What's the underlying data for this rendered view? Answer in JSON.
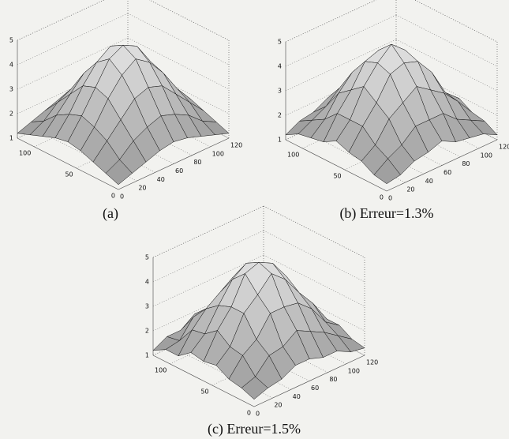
{
  "chart_data": [
    {
      "type": "surface",
      "caption": "(a)",
      "x": [
        0,
        15,
        30,
        45,
        60,
        75,
        90,
        105,
        120
      ],
      "y": [
        0,
        15,
        30,
        45,
        60,
        75,
        90,
        105,
        120
      ],
      "z": [
        [
          1.2,
          1.4,
          1.6,
          1.8,
          1.9,
          1.8,
          1.6,
          1.4,
          1.2
        ],
        [
          1.4,
          1.7,
          2.2,
          2.5,
          2.7,
          2.5,
          2.2,
          1.7,
          1.4
        ],
        [
          1.6,
          2.2,
          2.8,
          3.4,
          3.6,
          3.4,
          2.8,
          2.2,
          1.6
        ],
        [
          1.8,
          2.5,
          3.4,
          4.1,
          4.5,
          4.1,
          3.4,
          2.5,
          1.8
        ],
        [
          1.9,
          2.7,
          3.6,
          4.5,
          4.8,
          4.5,
          3.6,
          2.7,
          1.9
        ],
        [
          1.8,
          2.5,
          3.4,
          4.1,
          4.5,
          4.1,
          3.4,
          2.5,
          1.8
        ],
        [
          1.6,
          2.2,
          2.8,
          3.4,
          3.6,
          3.4,
          2.8,
          2.2,
          1.6
        ],
        [
          1.4,
          1.7,
          2.2,
          2.5,
          2.7,
          2.5,
          2.2,
          1.7,
          1.4
        ],
        [
          1.2,
          1.4,
          1.6,
          1.8,
          1.9,
          1.8,
          1.6,
          1.4,
          1.2
        ]
      ],
      "xlim": [
        0,
        120
      ],
      "ylim": [
        0,
        120
      ],
      "zlim": [
        1,
        5
      ],
      "xticks": [
        0,
        20,
        40,
        60,
        80,
        100,
        120
      ],
      "yticks": [
        0,
        50,
        100
      ],
      "zticks": [
        1,
        2,
        3,
        4,
        5
      ]
    },
    {
      "type": "surface",
      "caption": "(b) Erreur=1.3%",
      "x": [
        0,
        15,
        30,
        45,
        60,
        75,
        90,
        105,
        120
      ],
      "y": [
        0,
        15,
        30,
        45,
        60,
        75,
        90,
        105,
        120
      ],
      "z": [
        [
          1.3,
          1.4,
          1.7,
          1.8,
          2.0,
          1.7,
          1.6,
          1.5,
          1.2
        ],
        [
          1.4,
          1.8,
          2.1,
          2.6,
          2.6,
          2.6,
          2.1,
          1.8,
          1.5
        ],
        [
          1.7,
          2.1,
          2.9,
          3.3,
          3.7,
          3.3,
          2.9,
          2.3,
          1.6
        ],
        [
          1.8,
          2.6,
          3.3,
          4.2,
          4.4,
          4.2,
          3.5,
          2.4,
          1.9
        ],
        [
          2.0,
          2.6,
          3.7,
          4.4,
          4.9,
          4.4,
          3.5,
          2.8,
          1.8
        ],
        [
          1.7,
          2.6,
          3.3,
          4.2,
          4.4,
          4.0,
          3.5,
          2.4,
          1.9
        ],
        [
          1.6,
          2.1,
          2.9,
          3.5,
          3.7,
          3.3,
          2.7,
          2.3,
          1.5
        ],
        [
          1.5,
          1.8,
          2.1,
          2.6,
          2.6,
          2.6,
          2.3,
          1.6,
          1.5
        ],
        [
          1.2,
          1.5,
          1.6,
          1.9,
          1.8,
          1.9,
          1.5,
          1.5,
          1.3
        ]
      ],
      "xlim": [
        0,
        120
      ],
      "ylim": [
        0,
        120
      ],
      "zlim": [
        1,
        5
      ],
      "xticks": [
        0,
        20,
        40,
        60,
        80,
        100,
        120
      ],
      "yticks": [
        0,
        50,
        100
      ],
      "zticks": [
        1,
        2,
        3,
        4,
        5
      ]
    },
    {
      "type": "surface",
      "caption": "(c) Erreur=1.5%",
      "x": [
        0,
        15,
        30,
        45,
        60,
        75,
        90,
        105,
        120
      ],
      "y": [
        0,
        15,
        30,
        45,
        60,
        75,
        90,
        105,
        120
      ],
      "z": [
        [
          1.3,
          1.5,
          1.6,
          1.9,
          1.9,
          1.7,
          1.7,
          1.4,
          1.3
        ],
        [
          1.5,
          1.7,
          2.3,
          2.4,
          2.8,
          2.5,
          2.2,
          1.8,
          1.4
        ],
        [
          1.6,
          2.3,
          2.7,
          3.5,
          3.5,
          3.4,
          2.9,
          2.1,
          1.7
        ],
        [
          1.9,
          2.4,
          3.5,
          4.0,
          4.6,
          4.1,
          3.3,
          2.6,
          1.7
        ],
        [
          1.8,
          2.8,
          3.5,
          4.6,
          4.8,
          4.5,
          3.7,
          2.6,
          2.0
        ],
        [
          1.9,
          2.4,
          3.3,
          4.1,
          4.5,
          4.2,
          3.3,
          2.6,
          1.7
        ],
        [
          1.5,
          2.3,
          2.9,
          3.3,
          3.7,
          3.3,
          2.9,
          2.1,
          1.7
        ],
        [
          1.5,
          1.6,
          2.3,
          2.4,
          2.8,
          2.4,
          2.1,
          1.8,
          1.3
        ],
        [
          1.2,
          1.5,
          1.5,
          1.9,
          1.8,
          1.9,
          1.6,
          1.3,
          1.3
        ]
      ],
      "xlim": [
        0,
        120
      ],
      "ylim": [
        0,
        120
      ],
      "zlim": [
        1,
        5
      ],
      "xticks": [
        0,
        20,
        40,
        60,
        80,
        100,
        120
      ],
      "yticks": [
        0,
        50,
        100
      ],
      "zticks": [
        1,
        2,
        3,
        4,
        5
      ]
    }
  ]
}
